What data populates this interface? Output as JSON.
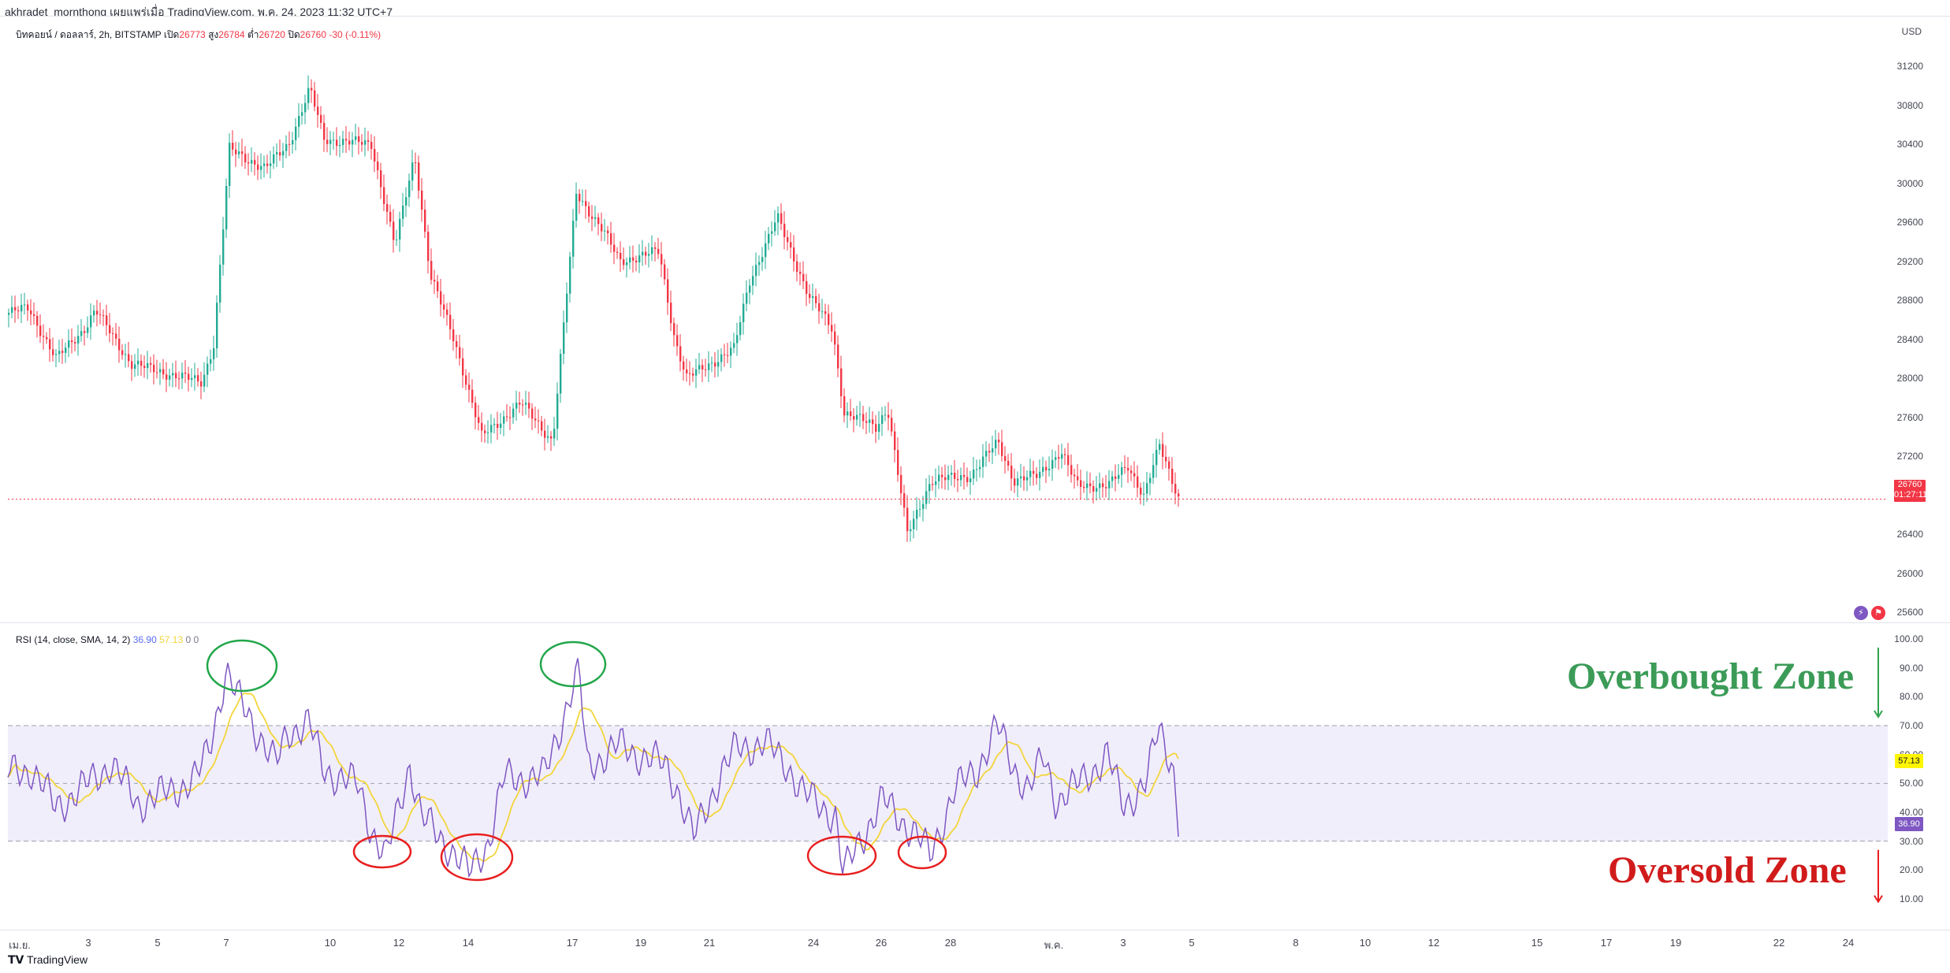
{
  "header": {
    "credit_text": "akhradet_mornthong เผยแพร่เมื่อ TradingView.com, พ.ค. 24, 2023 11:32 UTC+7",
    "legend": {
      "symbol_text": "บิทคอยน์ / ดอลลาร์, 2h, BITSTAMP",
      "open_label": "เปิด",
      "open_value": "26773",
      "high_label": "สูง",
      "high_value": "26784",
      "low_label": "ต่ำ",
      "low_value": "26720",
      "close_label": "ปิด",
      "close_value": "26760",
      "change_text": "-30 (-0.11%)"
    }
  },
  "price_scale": {
    "currency": "USD",
    "ticks": [
      31200,
      30800,
      30400,
      30000,
      29600,
      29200,
      28800,
      28400,
      28000,
      27600,
      27200,
      26400,
      26000,
      25600
    ],
    "current_price": "26760",
    "countdown": "01:27:11"
  },
  "rsi": {
    "legend_text": "RSI (14, close, SMA, 14, 2)",
    "rsi_value": "36.90",
    "sma_value": "57.13",
    "extra_value_1": "0",
    "extra_value_2": "0",
    "ticks": [
      "100.00",
      "90.00",
      "80.00",
      "70.00",
      "60.00",
      "50.00",
      "40.00",
      "30.00",
      "20.00",
      "10.00"
    ],
    "upper_band": 70,
    "middle_band": 50,
    "lower_band": 30
  },
  "annotations": {
    "overbought": "Overbought Zone",
    "oversold": "Oversold Zone"
  },
  "date_axis": {
    "labels": [
      "เม.ย.",
      "3",
      "5",
      "7",
      "10",
      "12",
      "14",
      "17",
      "19",
      "21",
      "24",
      "26",
      "28",
      "พ.ค.",
      "3",
      "5",
      "8",
      "10",
      "12",
      "15",
      "17",
      "19",
      "22",
      "24"
    ]
  },
  "footer": {
    "brand": "TradingView"
  },
  "colors": {
    "up": "#22ab94",
    "down": "#f23645",
    "rsi_line": "#7e57c2",
    "rsi_sma": "#f2d53a",
    "band_fill": "#f1eefb",
    "overbought": "#3b9b57",
    "oversold": "#d11b1b"
  },
  "icons": {
    "lightning": "lightning-icon",
    "flag": "flag-icon",
    "brand": "tradingview-logo-icon"
  }
}
